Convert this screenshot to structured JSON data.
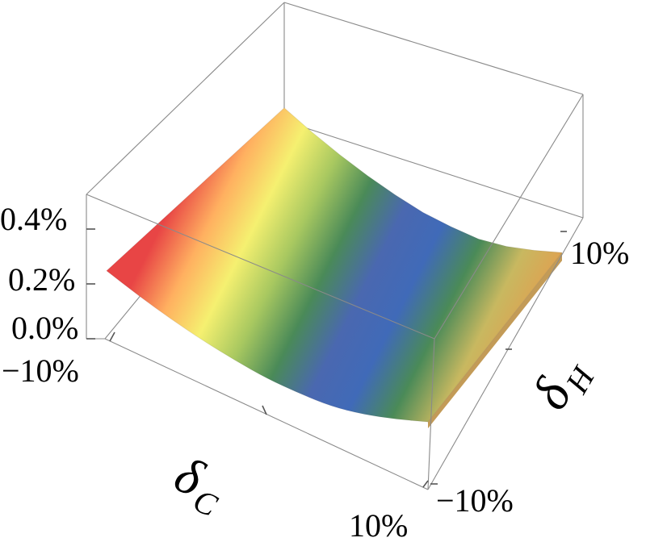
{
  "chart_data": {
    "type": "surface3d",
    "title": "",
    "x_axis": {
      "symbol": "δ",
      "subscript": "C",
      "ticks": [
        "−10%",
        "10%"
      ],
      "range": [
        -10,
        10
      ],
      "unit": "%"
    },
    "y_axis": {
      "symbol": "δ",
      "subscript": "H",
      "ticks": [
        "−10%",
        "10%"
      ],
      "range": [
        -10,
        10
      ],
      "unit": "%"
    },
    "z_axis": {
      "label": "",
      "ticks": [
        "0.0%",
        "0.2%",
        "0.4%"
      ],
      "range": [
        0,
        0.45
      ],
      "unit": "%"
    },
    "surface": {
      "description_points": {
        "x": [
          -10,
          -8,
          -6,
          -4,
          -2,
          0,
          2,
          4,
          6,
          8,
          10
        ],
        "z": [
          0.4,
          0.31,
          0.23,
          0.16,
          0.1,
          0.05,
          0.02,
          0.0,
          0.01,
          0.04,
          0.08
        ]
      },
      "z_varies_with_y": false
    },
    "colormap": [
      "#e84545",
      "#ffb060",
      "#f5f070",
      "#a8c860",
      "#4a8a58",
      "#4a68b0",
      "#406ab8",
      "#4a8a58",
      "#c8b860",
      "#e0a050"
    ],
    "grid": false,
    "box": true,
    "legend": "none"
  }
}
